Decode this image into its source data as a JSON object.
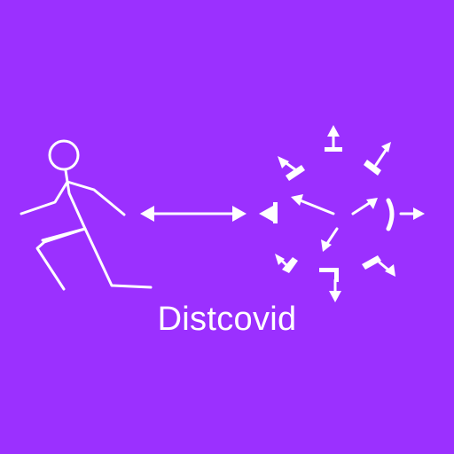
{
  "app": {
    "name": "Distcovid"
  },
  "icons": {
    "figure": "running-person-icon",
    "distance": "double-arrow-icon",
    "virus": "virus-burst-icon"
  },
  "colors": {
    "background": "#9b30ff",
    "foreground": "#ffffff"
  }
}
